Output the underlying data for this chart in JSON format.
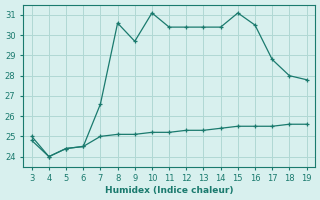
{
  "x": [
    3,
    4,
    5,
    6,
    7,
    8,
    9,
    10,
    11,
    12,
    13,
    14,
    15,
    16,
    17,
    18,
    19
  ],
  "y_humidex": [
    25.0,
    24.0,
    24.4,
    24.5,
    26.6,
    30.6,
    29.7,
    31.1,
    30.4,
    30.4,
    30.4,
    30.4,
    31.1,
    30.5,
    28.8,
    28.0,
    27.8
  ],
  "y_flat": [
    24.8,
    24.0,
    24.4,
    24.5,
    25.0,
    25.1,
    25.1,
    25.2,
    25.2,
    25.3,
    25.3,
    25.4,
    25.5,
    25.5,
    25.5,
    25.6,
    25.6
  ],
  "line_color": "#1a7a6e",
  "bg_color": "#d8f0ee",
  "grid_color": "#b0d8d4",
  "xlabel": "Humidex (Indice chaleur)",
  "xlim": [
    2.5,
    19.5
  ],
  "ylim": [
    23.5,
    31.5
  ],
  "yticks": [
    24,
    25,
    26,
    27,
    28,
    29,
    30,
    31
  ],
  "xticks": [
    3,
    4,
    5,
    6,
    7,
    8,
    9,
    10,
    11,
    12,
    13,
    14,
    15,
    16,
    17,
    18,
    19
  ]
}
